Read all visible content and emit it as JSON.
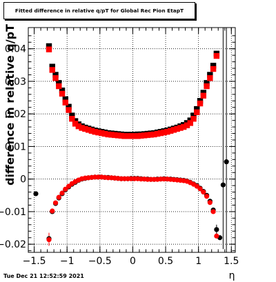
{
  "timestamp": "Tue Dec 21 12:52:59 2021",
  "chart_data": {
    "type": "scatter",
    "title": "Fitted difference in relative q/pT for Global Rec Pion EtapT",
    "xlabel": "η",
    "ylabel": "difference in relative q/pT",
    "xlim": [
      -1.59,
      1.56
    ],
    "ylim": [
      -0.0225,
      0.0465
    ],
    "x_ticks": [
      -1.5,
      -1,
      -0.5,
      0,
      0.5,
      1,
      1.5
    ],
    "x_tick_labels": [
      "−1.5",
      "−1",
      "−0.5",
      "0",
      "0.5",
      "1",
      "1.5"
    ],
    "y_ticks": [
      -0.02,
      -0.01,
      0,
      0.01,
      0.02,
      0.03,
      0.04
    ],
    "y_tick_labels": [
      "−0.02",
      "−0.01",
      "0",
      "0.01",
      "0.02",
      "0.03",
      "0.04"
    ],
    "grid": true,
    "colors": {
      "black": "#000000",
      "red": "#ff0000"
    },
    "series": [
      {
        "marker": "square",
        "color": "#000000",
        "points": [
          {
            "x": -1.275,
            "y": 0.0408
          },
          {
            "x": -1.225,
            "y": 0.0345
          },
          {
            "x": -1.175,
            "y": 0.032
          },
          {
            "x": -1.125,
            "y": 0.0295
          },
          {
            "x": -1.075,
            "y": 0.0272
          },
          {
            "x": -1.025,
            "y": 0.0245
          },
          {
            "x": -0.975,
            "y": 0.0222
          },
          {
            "x": -0.925,
            "y": 0.0195
          },
          {
            "x": -0.875,
            "y": 0.0178
          },
          {
            "x": -0.825,
            "y": 0.0168
          },
          {
            "x": -0.775,
            "y": 0.0162
          },
          {
            "x": -0.725,
            "y": 0.0158
          },
          {
            "x": -0.675,
            "y": 0.0155
          },
          {
            "x": -0.625,
            "y": 0.0152
          },
          {
            "x": -0.575,
            "y": 0.0149
          },
          {
            "x": -0.525,
            "y": 0.0147
          },
          {
            "x": -0.475,
            "y": 0.0145
          },
          {
            "x": -0.425,
            "y": 0.0143
          },
          {
            "x": -0.375,
            "y": 0.0141
          },
          {
            "x": -0.325,
            "y": 0.014
          },
          {
            "x": -0.275,
            "y": 0.0139
          },
          {
            "x": -0.225,
            "y": 0.0138
          },
          {
            "x": -0.175,
            "y": 0.0137
          },
          {
            "x": -0.125,
            "y": 0.0136
          },
          {
            "x": -0.075,
            "y": 0.0136
          },
          {
            "x": -0.025,
            "y": 0.0136
          },
          {
            "x": 0.025,
            "y": 0.0136
          },
          {
            "x": 0.075,
            "y": 0.0137
          },
          {
            "x": 0.125,
            "y": 0.0137
          },
          {
            "x": 0.175,
            "y": 0.0138
          },
          {
            "x": 0.225,
            "y": 0.0139
          },
          {
            "x": 0.275,
            "y": 0.014
          },
          {
            "x": 0.325,
            "y": 0.0141
          },
          {
            "x": 0.375,
            "y": 0.0143
          },
          {
            "x": 0.425,
            "y": 0.0145
          },
          {
            "x": 0.475,
            "y": 0.0147
          },
          {
            "x": 0.525,
            "y": 0.0149
          },
          {
            "x": 0.575,
            "y": 0.0152
          },
          {
            "x": 0.625,
            "y": 0.0155
          },
          {
            "x": 0.675,
            "y": 0.0158
          },
          {
            "x": 0.725,
            "y": 0.0162
          },
          {
            "x": 0.775,
            "y": 0.0166
          },
          {
            "x": 0.825,
            "y": 0.0172
          },
          {
            "x": 0.875,
            "y": 0.018
          },
          {
            "x": 0.925,
            "y": 0.0195
          },
          {
            "x": 0.975,
            "y": 0.0215
          },
          {
            "x": 1.025,
            "y": 0.024
          },
          {
            "x": 1.075,
            "y": 0.0265
          },
          {
            "x": 1.125,
            "y": 0.0295
          },
          {
            "x": 1.175,
            "y": 0.032
          },
          {
            "x": 1.225,
            "y": 0.0348
          },
          {
            "x": 1.275,
            "y": 0.0385
          }
        ]
      },
      {
        "marker": "square",
        "color": "#ff0000",
        "points": [
          {
            "x": -1.275,
            "y": 0.0398
          },
          {
            "x": -1.225,
            "y": 0.0335
          },
          {
            "x": -1.175,
            "y": 0.031
          },
          {
            "x": -1.125,
            "y": 0.0285
          },
          {
            "x": -1.075,
            "y": 0.0262
          },
          {
            "x": -1.025,
            "y": 0.0235
          },
          {
            "x": -0.975,
            "y": 0.0212
          },
          {
            "x": -0.925,
            "y": 0.0185
          },
          {
            "x": -0.875,
            "y": 0.017
          },
          {
            "x": -0.825,
            "y": 0.0162
          },
          {
            "x": -0.775,
            "y": 0.0157
          },
          {
            "x": -0.725,
            "y": 0.0154
          },
          {
            "x": -0.675,
            "y": 0.0151
          },
          {
            "x": -0.625,
            "y": 0.0148
          },
          {
            "x": -0.575,
            "y": 0.0145
          },
          {
            "x": -0.525,
            "y": 0.0143
          },
          {
            "x": -0.475,
            "y": 0.0141
          },
          {
            "x": -0.425,
            "y": 0.0139
          },
          {
            "x": -0.375,
            "y": 0.0137
          },
          {
            "x": -0.325,
            "y": 0.0136
          },
          {
            "x": -0.275,
            "y": 0.0135
          },
          {
            "x": -0.225,
            "y": 0.0134
          },
          {
            "x": -0.175,
            "y": 0.0133
          },
          {
            "x": -0.125,
            "y": 0.0132
          },
          {
            "x": -0.075,
            "y": 0.0132
          },
          {
            "x": -0.025,
            "y": 0.0132
          },
          {
            "x": 0.025,
            "y": 0.0132
          },
          {
            "x": 0.075,
            "y": 0.0132
          },
          {
            "x": 0.125,
            "y": 0.0133
          },
          {
            "x": 0.175,
            "y": 0.0134
          },
          {
            "x": 0.225,
            "y": 0.0135
          },
          {
            "x": 0.275,
            "y": 0.0136
          },
          {
            "x": 0.325,
            "y": 0.0137
          },
          {
            "x": 0.375,
            "y": 0.0139
          },
          {
            "x": 0.425,
            "y": 0.0141
          },
          {
            "x": 0.475,
            "y": 0.0143
          },
          {
            "x": 0.525,
            "y": 0.0145
          },
          {
            "x": 0.575,
            "y": 0.0148
          },
          {
            "x": 0.625,
            "y": 0.0151
          },
          {
            "x": 0.675,
            "y": 0.0154
          },
          {
            "x": 0.725,
            "y": 0.0157
          },
          {
            "x": 0.775,
            "y": 0.016
          },
          {
            "x": 0.825,
            "y": 0.0165
          },
          {
            "x": 0.875,
            "y": 0.0172
          },
          {
            "x": 0.925,
            "y": 0.0185
          },
          {
            "x": 0.975,
            "y": 0.0205
          },
          {
            "x": 1.025,
            "y": 0.0232
          },
          {
            "x": 1.075,
            "y": 0.0256
          },
          {
            "x": 1.125,
            "y": 0.0285
          },
          {
            "x": 1.175,
            "y": 0.031
          },
          {
            "x": 1.225,
            "y": 0.0338
          },
          {
            "x": 1.275,
            "y": 0.0378
          }
        ]
      },
      {
        "marker": "circle",
        "color": "#000000",
        "points": [
          {
            "x": -1.475,
            "y": -0.0045
          },
          {
            "x": -1.275,
            "y": -0.0183
          },
          {
            "x": -1.225,
            "y": -0.01
          },
          {
            "x": -1.175,
            "y": -0.0075
          },
          {
            "x": -1.125,
            "y": -0.0058
          },
          {
            "x": -1.075,
            "y": -0.0045
          },
          {
            "x": -1.025,
            "y": -0.0033
          },
          {
            "x": -0.975,
            "y": -0.0024
          },
          {
            "x": -0.925,
            "y": -0.0016
          },
          {
            "x": -0.875,
            "y": -0.001
          },
          {
            "x": -0.825,
            "y": -0.0004
          },
          {
            "x": -0.775,
            "y": 0.0
          },
          {
            "x": -0.725,
            "y": 0.0002
          },
          {
            "x": -0.675,
            "y": 0.0004
          },
          {
            "x": -0.625,
            "y": 0.0005
          },
          {
            "x": -0.575,
            "y": 0.0006
          },
          {
            "x": -0.525,
            "y": 0.0006
          },
          {
            "x": -0.475,
            "y": 0.0006
          },
          {
            "x": -0.425,
            "y": 0.0005
          },
          {
            "x": -0.375,
            "y": 0.0005
          },
          {
            "x": -0.325,
            "y": 0.0004
          },
          {
            "x": -0.275,
            "y": 0.0003
          },
          {
            "x": -0.225,
            "y": 0.0002
          },
          {
            "x": -0.175,
            "y": 0.0001
          },
          {
            "x": -0.125,
            "y": 0.0001
          },
          {
            "x": -0.075,
            "y": 0.0001
          },
          {
            "x": -0.025,
            "y": 0.0002
          },
          {
            "x": 0.025,
            "y": 0.0002
          },
          {
            "x": 0.075,
            "y": 0.0002
          },
          {
            "x": 0.125,
            "y": 0.0001
          },
          {
            "x": 0.175,
            "y": 0.0
          },
          {
            "x": 0.225,
            "y": 0.0
          },
          {
            "x": 0.275,
            "y": -0.0001
          },
          {
            "x": 0.325,
            "y": -0.0001
          },
          {
            "x": 0.375,
            "y": 0.0
          },
          {
            "x": 0.425,
            "y": 0.0
          },
          {
            "x": 0.475,
            "y": 0.0001
          },
          {
            "x": 0.525,
            "y": 0.0
          },
          {
            "x": 0.575,
            "y": 0.0
          },
          {
            "x": 0.625,
            "y": -0.0001
          },
          {
            "x": 0.675,
            "y": -0.0002
          },
          {
            "x": 0.725,
            "y": -0.0003
          },
          {
            "x": 0.775,
            "y": -0.0004
          },
          {
            "x": 0.825,
            "y": -0.0006
          },
          {
            "x": 0.875,
            "y": -0.001
          },
          {
            "x": 0.925,
            "y": -0.0015
          },
          {
            "x": 0.975,
            "y": -0.002
          },
          {
            "x": 1.025,
            "y": -0.0028
          },
          {
            "x": 1.075,
            "y": -0.0038
          },
          {
            "x": 1.125,
            "y": -0.005
          },
          {
            "x": 1.175,
            "y": -0.0068
          },
          {
            "x": 1.225,
            "y": -0.0095
          },
          {
            "x": 1.275,
            "y": -0.0155
          },
          {
            "x": 1.325,
            "y": -0.018
          },
          {
            "x": 1.375,
            "y": -0.0018
          },
          {
            "x": 1.425,
            "y": 0.0053
          }
        ]
      },
      {
        "marker": "circle",
        "color": "#ff0000",
        "points": [
          {
            "x": -1.275,
            "y": -0.0186
          },
          {
            "x": -1.225,
            "y": -0.0098
          },
          {
            "x": -1.175,
            "y": -0.0073
          },
          {
            "x": -1.125,
            "y": -0.0056
          },
          {
            "x": -1.075,
            "y": -0.0043
          },
          {
            "x": -1.025,
            "y": -0.0031
          },
          {
            "x": -0.975,
            "y": -0.0022
          },
          {
            "x": -0.925,
            "y": -0.0014
          },
          {
            "x": -0.875,
            "y": -0.0008
          },
          {
            "x": -0.825,
            "y": -0.0003
          },
          {
            "x": -0.775,
            "y": 0.0001
          },
          {
            "x": -0.725,
            "y": 0.0003
          },
          {
            "x": -0.675,
            "y": 0.0004
          },
          {
            "x": -0.625,
            "y": 0.0005
          },
          {
            "x": -0.575,
            "y": 0.0006
          },
          {
            "x": -0.525,
            "y": 0.0006
          },
          {
            "x": -0.475,
            "y": 0.0006
          },
          {
            "x": -0.425,
            "y": 0.0005
          },
          {
            "x": -0.375,
            "y": 0.0004
          },
          {
            "x": -0.325,
            "y": 0.0004
          },
          {
            "x": -0.275,
            "y": 0.0003
          },
          {
            "x": -0.225,
            "y": 0.0002
          },
          {
            "x": -0.175,
            "y": 0.0001
          },
          {
            "x": -0.125,
            "y": 0.0001
          },
          {
            "x": -0.075,
            "y": 0.0001
          },
          {
            "x": -0.025,
            "y": 0.0001
          },
          {
            "x": 0.025,
            "y": 0.0001
          },
          {
            "x": 0.075,
            "y": 0.0001
          },
          {
            "x": 0.125,
            "y": 0.0
          },
          {
            "x": 0.175,
            "y": 0.0
          },
          {
            "x": 0.225,
            "y": -0.0001
          },
          {
            "x": 0.275,
            "y": -0.0001
          },
          {
            "x": 0.325,
            "y": -0.0001
          },
          {
            "x": 0.375,
            "y": -0.0001
          },
          {
            "x": 0.425,
            "y": 0.0
          },
          {
            "x": 0.475,
            "y": 0.0
          },
          {
            "x": 0.525,
            "y": 0.0
          },
          {
            "x": 0.575,
            "y": -0.0001
          },
          {
            "x": 0.625,
            "y": -0.0002
          },
          {
            "x": 0.675,
            "y": -0.0003
          },
          {
            "x": 0.725,
            "y": -0.0004
          },
          {
            "x": 0.775,
            "y": -0.0005
          },
          {
            "x": 0.825,
            "y": -0.0007
          },
          {
            "x": 0.875,
            "y": -0.0011
          },
          {
            "x": 0.925,
            "y": -0.0016
          },
          {
            "x": 0.975,
            "y": -0.0022
          },
          {
            "x": 1.025,
            "y": -0.003
          },
          {
            "x": 1.075,
            "y": -0.004
          },
          {
            "x": 1.125,
            "y": -0.0053
          },
          {
            "x": 1.175,
            "y": -0.0072
          },
          {
            "x": 1.225,
            "y": -0.01
          },
          {
            "x": 1.275,
            "y": -0.0175
          }
        ]
      }
    ],
    "error_bars": [
      {
        "x": 1.375,
        "y_low": -0.0215,
        "y_high": 0.0465,
        "color": "#000000"
      },
      {
        "x": 1.425,
        "y_low": -0.0225,
        "y_high": 0.0465,
        "color": "#000000"
      },
      {
        "x": -1.275,
        "y_low": -0.0205,
        "y_high": -0.0165,
        "color": "#ff0000"
      },
      {
        "x": 1.275,
        "y_low": -0.018,
        "y_high": -0.014,
        "color": "#000000"
      }
    ]
  }
}
